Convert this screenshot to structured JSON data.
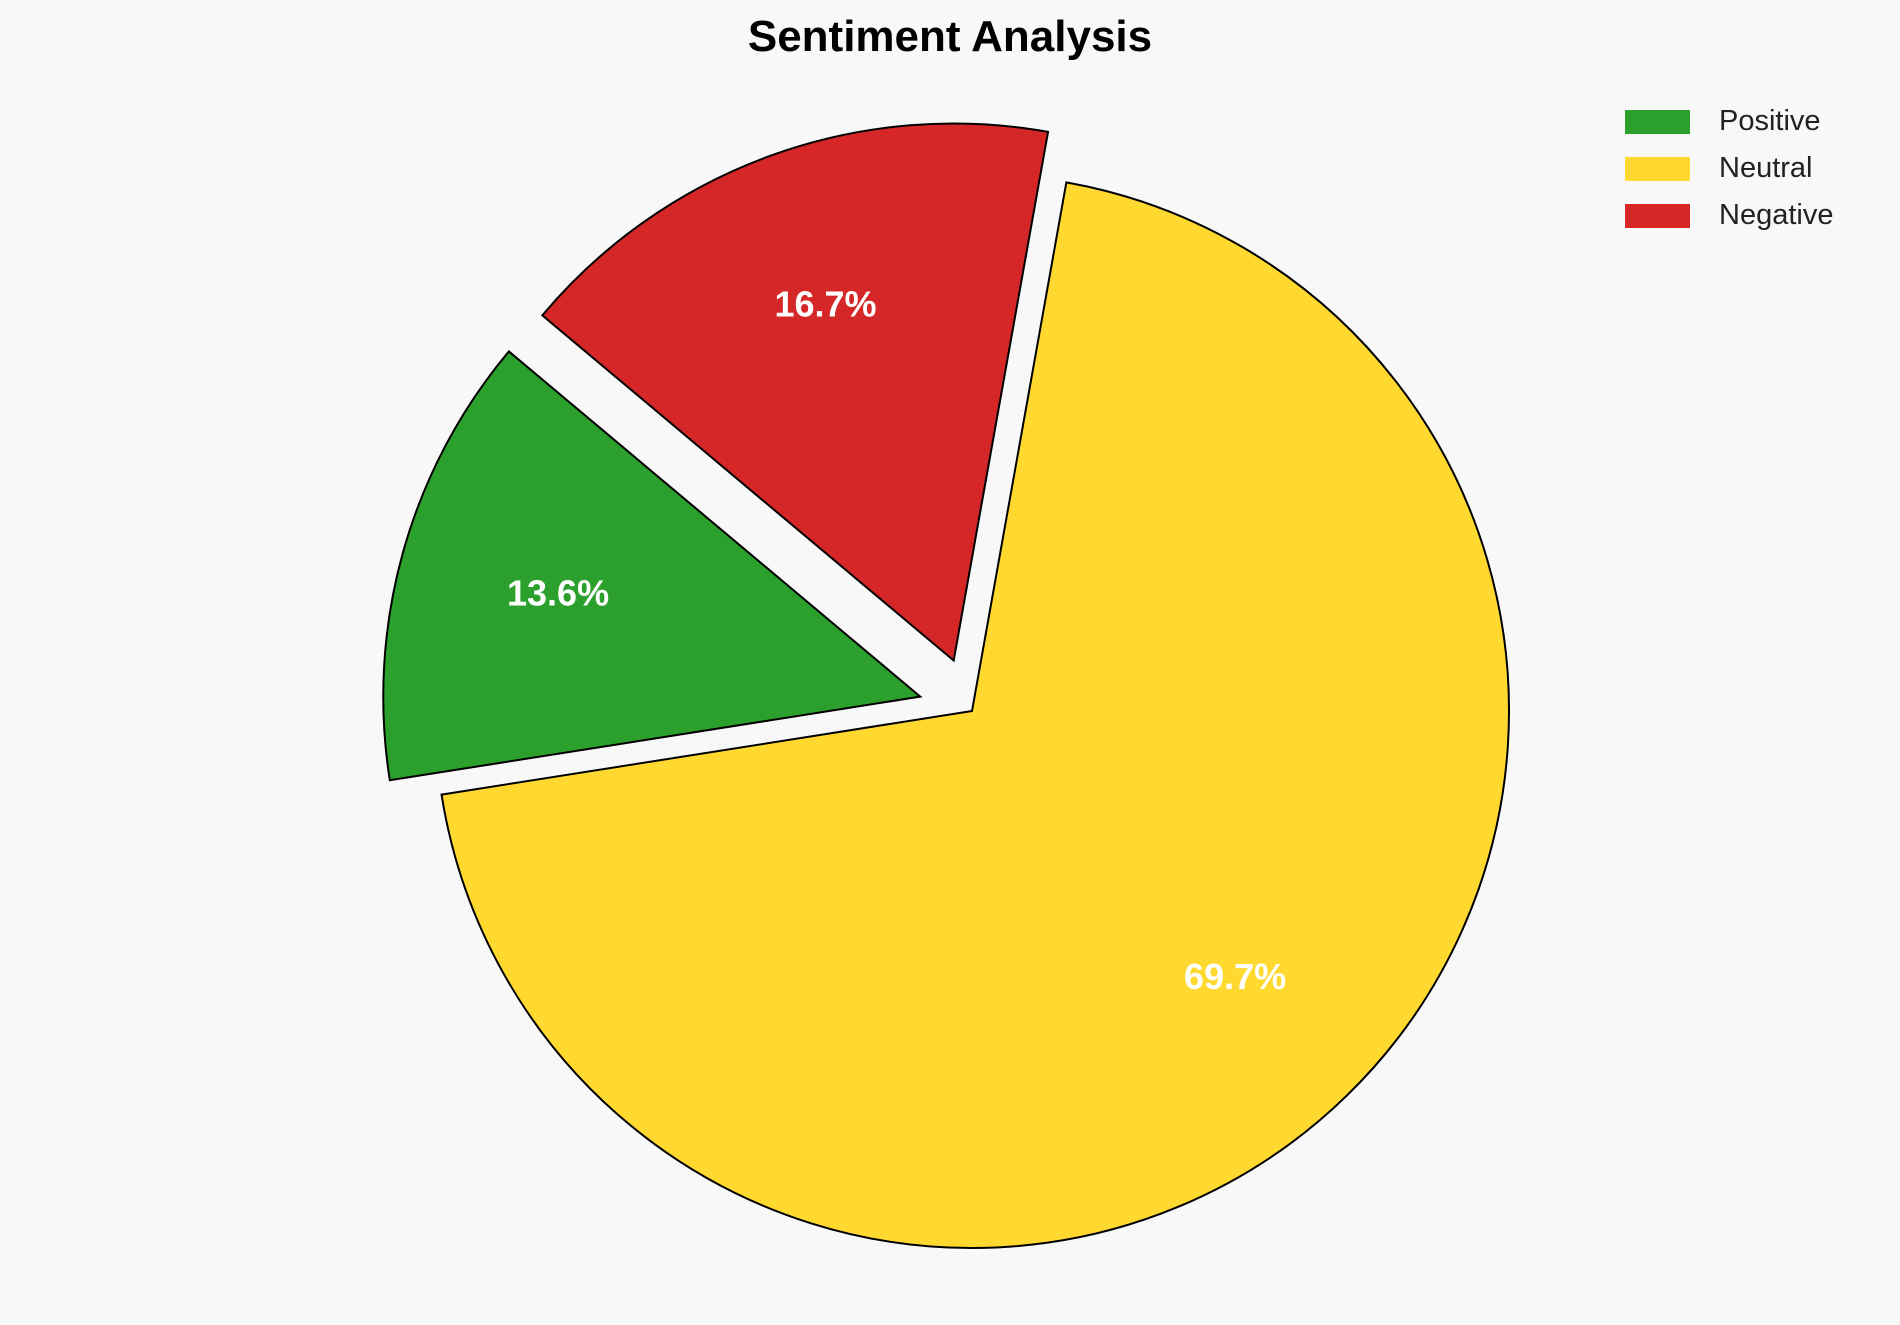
{
  "chart_data": {
    "type": "pie",
    "title": "Sentiment Analysis",
    "categories": [
      "Positive",
      "Neutral",
      "Negative"
    ],
    "values": [
      13.6,
      69.7,
      16.7
    ],
    "labels": [
      "13.6%",
      "69.7%",
      "16.7%"
    ],
    "colors": [
      "#2ca02c",
      "#ffd92f",
      "#d62728"
    ],
    "explode": [
      0.1,
      0,
      0.1
    ],
    "start_angle": 140,
    "legend_position": "top-right",
    "legend": [
      "Positive",
      "Neutral",
      "Negative"
    ]
  }
}
